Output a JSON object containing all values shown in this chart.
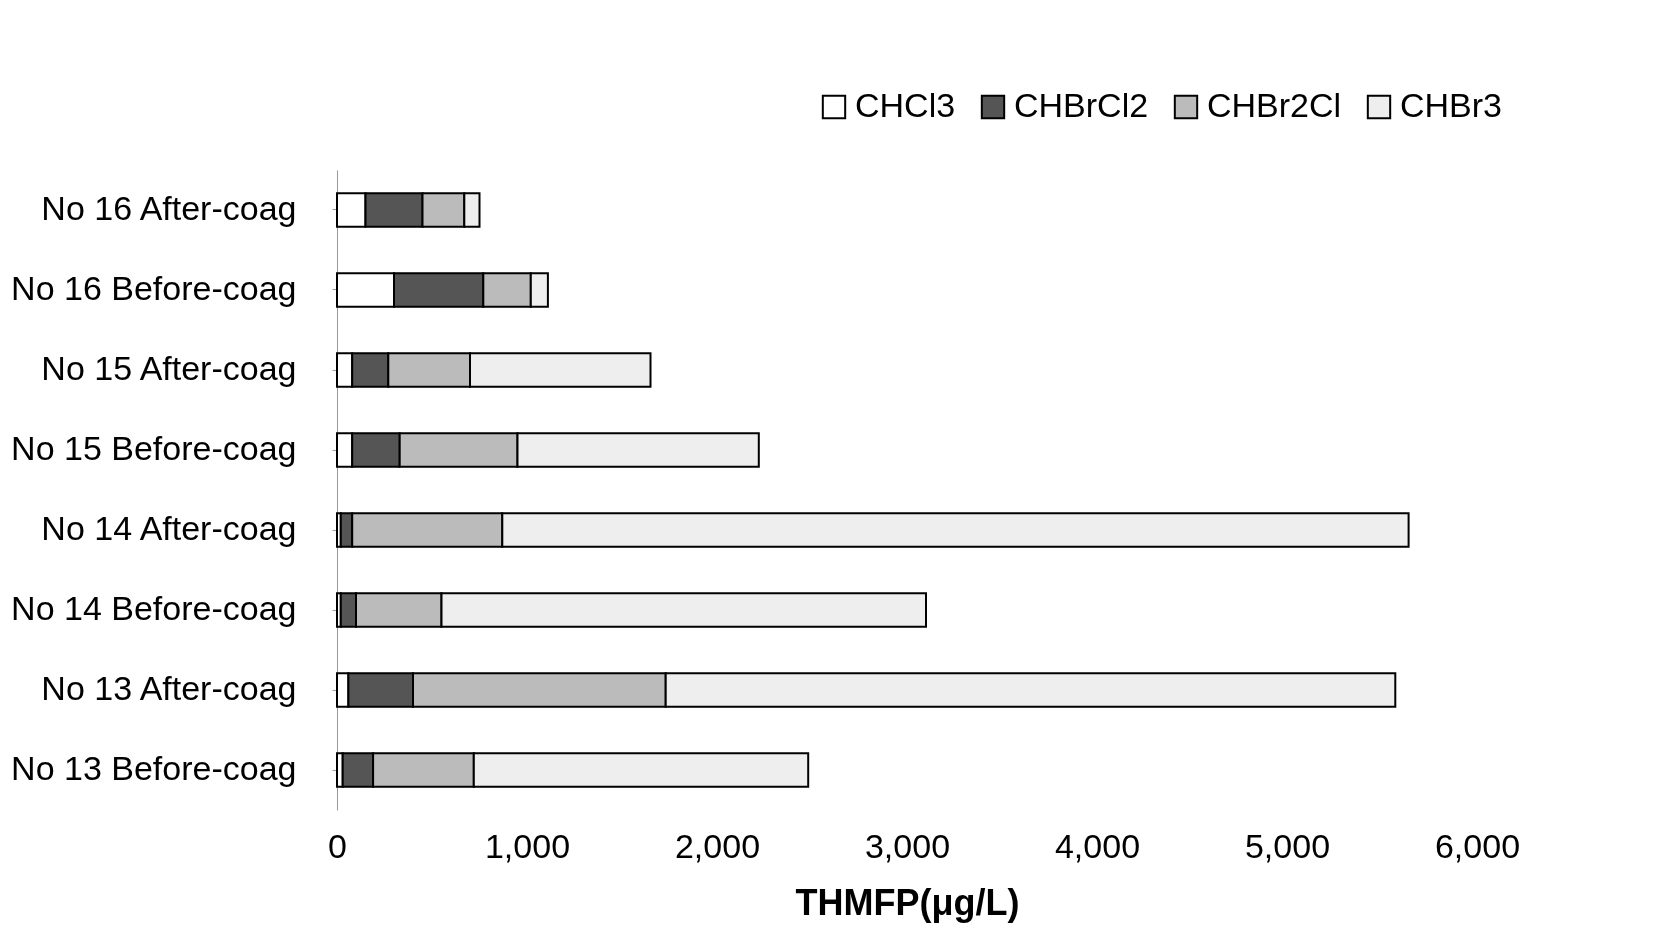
{
  "chart_data": {
    "type": "bar",
    "orientation": "horizontal",
    "stacked": true,
    "xlabel": "THMFP(μg/L)",
    "legend": "top right",
    "grid": false,
    "categories": [
      "No 16 After-coag",
      "No 16 Before-coag",
      "No 15 After-coag",
      "No 15 Before-coag",
      "No 14 After-coag",
      "No 14 Before-coag",
      "No 13 After-coag",
      "No 13 Before-coag"
    ],
    "series": [
      {
        "name": "CHCl3",
        "color": "#ffffff",
        "values": [
          150,
          300,
          80,
          80,
          20,
          20,
          60,
          30
        ]
      },
      {
        "name": "CHBrCl2",
        "color": "#555555",
        "values": [
          300,
          470,
          190,
          250,
          60,
          80,
          340,
          160
        ]
      },
      {
        "name": "CHBr2Cl",
        "color": "#bbbbbb",
        "values": [
          220,
          250,
          430,
          620,
          790,
          450,
          1330,
          530
        ]
      },
      {
        "name": "CHBr3",
        "color": "#eeeeee",
        "values": [
          80,
          90,
          950,
          1270,
          4770,
          2550,
          3840,
          1760
        ]
      }
    ],
    "xlim": [
      0,
      6000
    ],
    "xticks": [
      0,
      {
        "value": 1000,
        "label": "1,000"
      },
      {
        "value": 2000,
        "label": "2,000"
      },
      {
        "value": 3000,
        "label": "3,000"
      },
      {
        "value": 4000,
        "label": "4,000"
      },
      {
        "value": 5000,
        "label": "5,000"
      },
      {
        "value": 6000,
        "label": "6,000"
      }
    ]
  }
}
